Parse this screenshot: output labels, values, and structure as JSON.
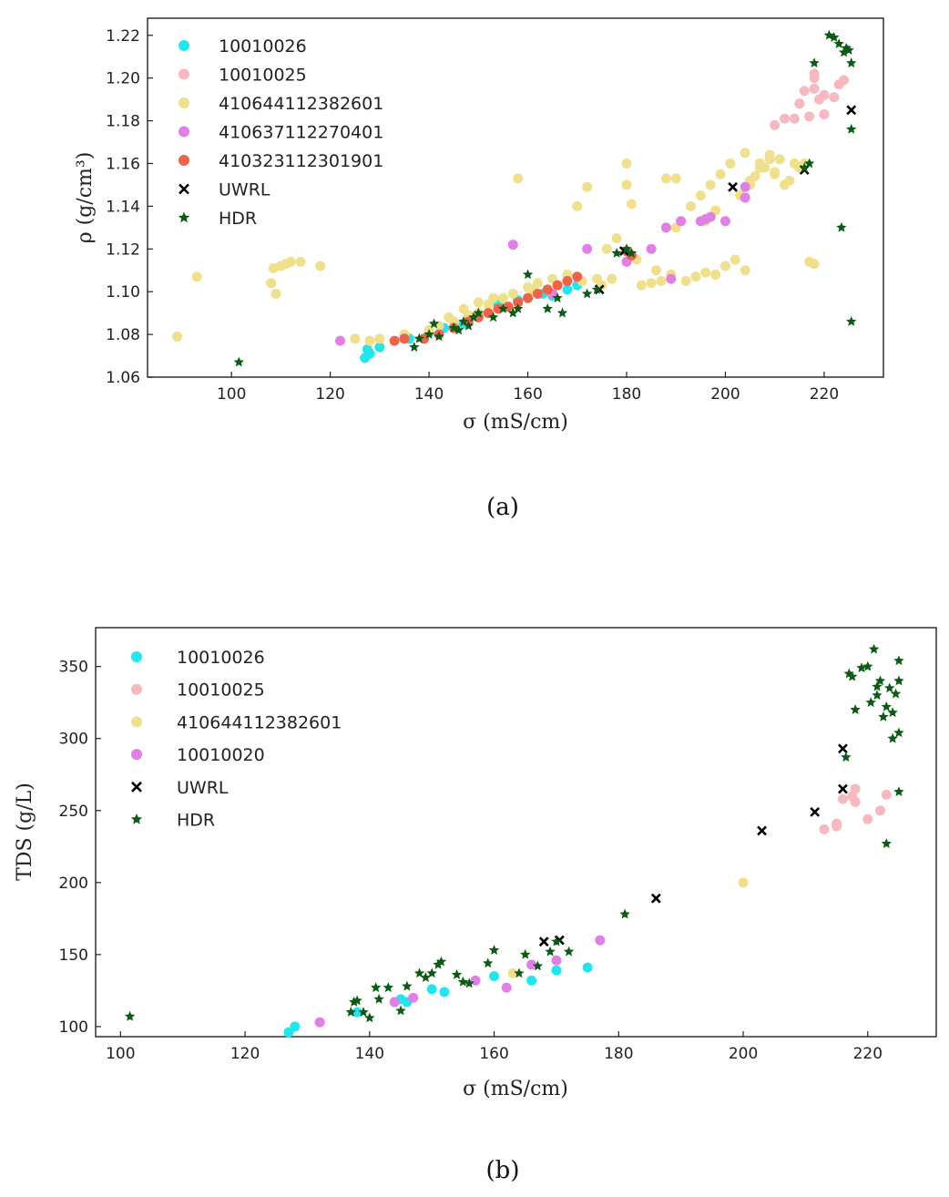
{
  "chart_data": [
    {
      "type": "scatter",
      "panel_label": "(a)",
      "title": "",
      "xlabel": "σ (mS/cm)",
      "ylabel": "ρ (g/cm³)",
      "xlim": [
        83,
        232
      ],
      "ylim": [
        1.06,
        1.228
      ],
      "xticks": [
        "100",
        "120",
        "140",
        "160",
        "180",
        "200",
        "220"
      ],
      "xtick_values": [
        100,
        120,
        140,
        160,
        180,
        200,
        220
      ],
      "yticks": [
        "1.06",
        "1.08",
        "1.10",
        "1.12",
        "1.14",
        "1.16",
        "1.18",
        "1.20",
        "1.22"
      ],
      "ytick_values": [
        1.06,
        1.08,
        1.1,
        1.12,
        1.14,
        1.16,
        1.18,
        1.2,
        1.22
      ],
      "legend_position": "top-left",
      "series": [
        {
          "name": "10010026",
          "color": "#22e6ee",
          "marker": "circle",
          "x": [
            127,
            127.5,
            128,
            130,
            136,
            140,
            143,
            147,
            150,
            154,
            158,
            160,
            163,
            165,
            168,
            170
          ],
          "y": [
            1.069,
            1.073,
            1.071,
            1.074,
            1.078,
            1.081,
            1.083,
            1.085,
            1.089,
            1.094,
            1.096,
            1.097,
            1.099,
            1.098,
            1.101,
            1.103
          ]
        },
        {
          "name": "10010025",
          "color": "#f8b8c0",
          "marker": "circle",
          "x": [
            210,
            212,
            214,
            215,
            216,
            217,
            218,
            218,
            218,
            219,
            220,
            220,
            222,
            223,
            224
          ],
          "y": [
            1.178,
            1.181,
            1.181,
            1.188,
            1.194,
            1.182,
            1.195,
            1.2,
            1.202,
            1.19,
            1.192,
            1.183,
            1.191,
            1.197,
            1.199
          ]
        },
        {
          "name": "410644112382601",
          "color": "#f0e08c",
          "marker": "circle",
          "x": [
            89,
            93,
            108,
            108.5,
            109,
            110,
            111,
            112,
            114,
            118,
            125,
            128,
            130,
            135,
            140,
            142,
            145,
            148,
            150,
            152,
            155,
            157,
            158,
            160,
            162,
            165,
            168,
            170,
            172,
            175,
            177,
            180,
            180,
            181,
            183,
            185,
            187,
            188,
            190,
            192,
            194,
            196,
            198,
            200,
            202,
            204,
            205,
            206,
            207,
            208,
            209,
            210,
            212,
            213,
            215,
            216,
            217,
            218,
            190,
            193,
            195,
            197,
            199,
            201,
            204,
            207,
            210,
            176,
            178,
            182,
            186,
            189,
            161,
            166,
            171,
            174,
            150,
            153,
            147,
            144,
            203,
            205,
            207,
            209,
            211,
            214,
            196,
            198
          ],
          "y": [
            1.079,
            1.107,
            1.104,
            1.111,
            1.099,
            1.112,
            1.113,
            1.114,
            1.114,
            1.112,
            1.078,
            1.077,
            1.078,
            1.08,
            1.082,
            1.084,
            1.086,
            1.089,
            1.09,
            1.094,
            1.097,
            1.099,
            1.153,
            1.102,
            1.104,
            1.106,
            1.108,
            1.14,
            1.149,
            1.103,
            1.106,
            1.15,
            1.16,
            1.141,
            1.103,
            1.104,
            1.105,
            1.153,
            1.153,
            1.105,
            1.107,
            1.109,
            1.108,
            1.112,
            1.115,
            1.11,
            1.15,
            1.154,
            1.16,
            1.158,
            1.162,
            1.156,
            1.15,
            1.152,
            1.158,
            1.16,
            1.114,
            1.113,
            1.13,
            1.14,
            1.145,
            1.15,
            1.155,
            1.16,
            1.165,
            1.16,
            1.155,
            1.12,
            1.125,
            1.115,
            1.11,
            1.108,
            1.101,
            1.103,
            1.105,
            1.106,
            1.095,
            1.097,
            1.092,
            1.088,
            1.145,
            1.152,
            1.158,
            1.164,
            1.162,
            1.16,
            1.133,
            1.138
          ]
        },
        {
          "name": "410637112270401",
          "color": "#e27ee8",
          "marker": "circle",
          "x": [
            122,
            157,
            165,
            172,
            180,
            185,
            188,
            191,
            195,
            196,
            197,
            200,
            204,
            204,
            189
          ],
          "y": [
            1.077,
            1.122,
            1.099,
            1.12,
            1.114,
            1.12,
            1.13,
            1.133,
            1.133,
            1.134,
            1.135,
            1.133,
            1.144,
            1.149,
            1.106
          ]
        },
        {
          "name": "410323112301901",
          "color": "#f26248",
          "marker": "circle",
          "x": [
            133,
            135,
            139,
            142,
            145,
            148,
            150,
            152,
            154,
            156,
            158,
            160,
            162,
            164,
            166,
            168,
            170,
            180,
            181
          ],
          "y": [
            1.077,
            1.078,
            1.078,
            1.08,
            1.083,
            1.086,
            1.088,
            1.09,
            1.092,
            1.093,
            1.095,
            1.097,
            1.099,
            1.101,
            1.103,
            1.105,
            1.107,
            1.119,
            1.117
          ]
        },
        {
          "name": "UWRL",
          "color": "#000000",
          "marker": "x",
          "x": [
            174.5,
            179.5,
            201.5,
            216,
            225.5
          ],
          "y": [
            1.101,
            1.119,
            1.149,
            1.157,
            1.185
          ]
        },
        {
          "name": "HDR",
          "color": "#0a5c12",
          "marker": "star",
          "x": [
            101.5,
            137,
            138,
            140,
            141,
            142,
            145,
            146,
            147,
            148,
            149,
            150,
            153,
            155,
            157,
            158,
            160,
            164,
            166,
            167,
            172,
            174,
            178,
            180,
            181,
            216,
            217,
            218,
            221,
            222,
            223,
            224,
            224.5,
            225,
            225.5,
            225.5,
            223.5,
            225.5
          ],
          "y": [
            1.067,
            1.074,
            1.078,
            1.08,
            1.085,
            1.079,
            1.083,
            1.082,
            1.086,
            1.084,
            1.088,
            1.09,
            1.088,
            1.092,
            1.09,
            1.092,
            1.108,
            1.092,
            1.097,
            1.09,
            1.099,
            1.101,
            1.118,
            1.12,
            1.118,
            1.158,
            1.16,
            1.207,
            1.22,
            1.219,
            1.216,
            1.212,
            1.214,
            1.213,
            1.207,
            1.176,
            1.13,
            1.086
          ]
        }
      ]
    },
    {
      "type": "scatter",
      "panel_label": "(b)",
      "title": "",
      "xlabel": "σ (mS/cm)",
      "ylabel": "TDS (g/L)",
      "xlim": [
        96,
        231
      ],
      "ylim": [
        93,
        377
      ],
      "xticks": [
        "100",
        "120",
        "140",
        "160",
        "180",
        "200",
        "220"
      ],
      "xtick_values": [
        100,
        120,
        140,
        160,
        180,
        200,
        220
      ],
      "yticks": [
        "100",
        "150",
        "200",
        "250",
        "300",
        "350"
      ],
      "ytick_values": [
        100,
        150,
        200,
        250,
        300,
        350
      ],
      "legend_position": "top-left",
      "series": [
        {
          "name": "10010026",
          "color": "#22e6ee",
          "marker": "circle",
          "x": [
            127,
            128,
            138,
            145,
            146,
            150,
            152,
            160,
            166,
            170,
            175
          ],
          "y": [
            96,
            100,
            110,
            119,
            117,
            126,
            124,
            135,
            132,
            139,
            141
          ]
        },
        {
          "name": "10010025",
          "color": "#f8b8c0",
          "marker": "circle",
          "x": [
            213,
            215,
            215,
            216,
            217.5,
            218,
            218,
            220,
            222,
            223
          ],
          "y": [
            237,
            239,
            241,
            258,
            260,
            265,
            256,
            244,
            250,
            261
          ]
        },
        {
          "name": "410644112382601",
          "color": "#f0e08c",
          "marker": "circle",
          "x": [
            163,
            200
          ],
          "y": [
            137,
            200
          ]
        },
        {
          "name": "10010020",
          "color": "#e27ee8",
          "marker": "circle",
          "x": [
            132,
            144,
            147,
            157,
            162,
            166,
            170,
            177
          ],
          "y": [
            103,
            117,
            120,
            132,
            127,
            143,
            146,
            160
          ]
        },
        {
          "name": "UWRL",
          "color": "#000000",
          "marker": "x",
          "x": [
            168,
            170.5,
            186,
            203,
            211.5,
            216,
            216
          ],
          "y": [
            159,
            160,
            189,
            236,
            249,
            293,
            265
          ]
        },
        {
          "name": "HDR",
          "color": "#0a5c12",
          "marker": "star",
          "x": [
            101.5,
            137,
            137.5,
            138,
            139,
            140,
            141,
            141.5,
            143,
            145,
            146,
            148,
            149,
            150,
            151,
            151.5,
            154,
            155,
            156,
            159,
            160,
            164,
            165,
            167,
            169,
            170,
            172,
            181,
            216.5,
            217,
            217.5,
            218,
            219,
            220,
            220.5,
            221,
            221.5,
            222,
            222.5,
            223,
            223.5,
            224,
            224.5,
            225,
            225,
            225,
            225,
            223,
            224,
            221.5
          ],
          "y": [
            107,
            110,
            117,
            118,
            110,
            106,
            127,
            119,
            127,
            111,
            128,
            137,
            134,
            137,
            143,
            145,
            136,
            131,
            130,
            144,
            153,
            137,
            150,
            142,
            152,
            159,
            152,
            178,
            287,
            345,
            343,
            320,
            349,
            350,
            325,
            362,
            330,
            340,
            315,
            322,
            335,
            300,
            331,
            304,
            263,
            354,
            340,
            227,
            318,
            336
          ]
        }
      ]
    }
  ]
}
